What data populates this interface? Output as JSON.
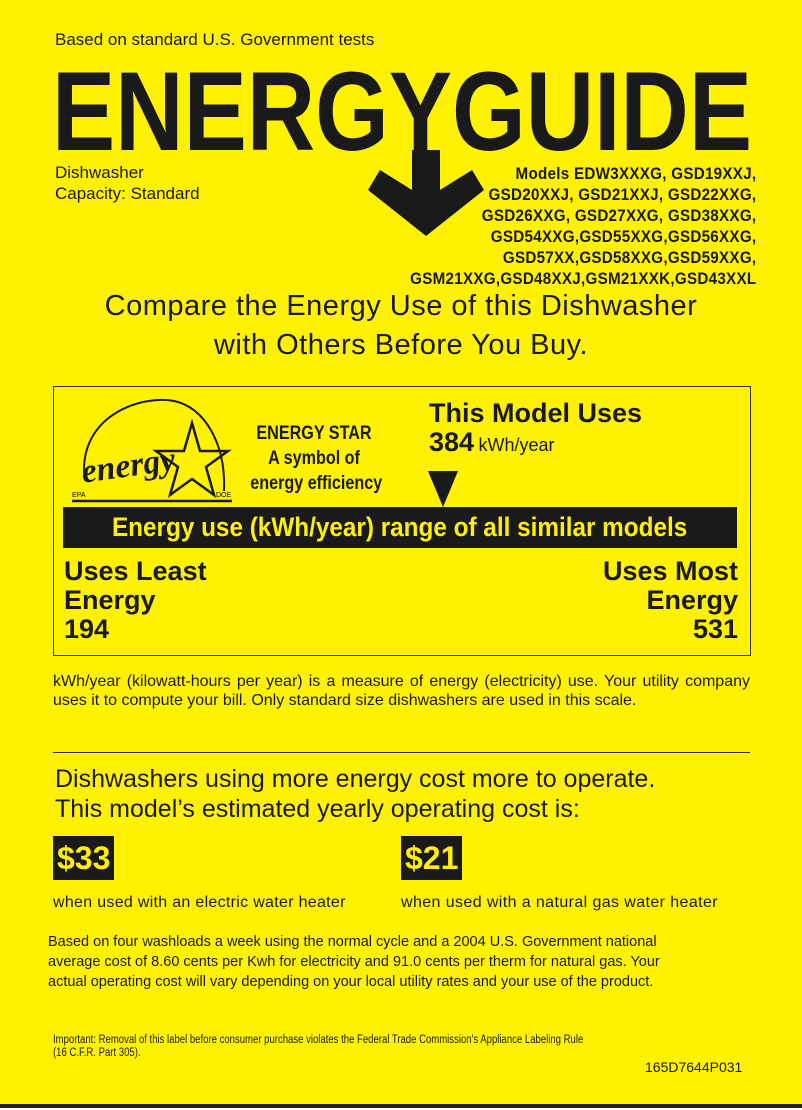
{
  "header": {
    "tests_note": "Based on standard U.S. Government tests",
    "title": "ENERGYGUIDE",
    "appliance": "Dishwasher",
    "capacity": "Capacity: Standard",
    "models": [
      "Models EDW3XXXG, GSD19XXJ,",
      "GSD20XXJ,  GSD21XXJ, GSD22XXG,",
      "GSD26XXG, GSD27XXG, GSD38XXG,",
      "GSD54XXG,GSD55XXG,GSD56XXG,",
      "GSD57XX,GSD58XXG,GSD59XXG,",
      "GSM21XXG,GSD48XXJ,GSM21XXK,GSD43XXL"
    ]
  },
  "compare": [
    "Compare the Energy Use of this Dishwasher",
    "with Others Before You Buy."
  ],
  "energy_star": {
    "logo_text": "energy",
    "logo_epa": "EPA",
    "logo_doe": "DOE",
    "lines": [
      "ENERGY STAR",
      "A symbol of",
      "energy efficiency"
    ]
  },
  "usage": {
    "heading": "This Model Uses",
    "value": "384",
    "unit": "kWh/year",
    "range_title": "Energy use (kWh/year) range of all similar models",
    "least_label": [
      "Uses Least",
      "Energy"
    ],
    "least_value": "194",
    "most_label": [
      "Uses Most",
      "Energy"
    ],
    "most_value": "531",
    "range_min": 194,
    "range_max": 531,
    "model_value": 384
  },
  "explanation": "kWh/year (kilowatt-hours per year) is a measure of energy (electricity) use. Your utility company uses it to compute your bill. Only standard size dishwashers are used in this scale.",
  "cost": {
    "heading": [
      "Dishwashers using more energy cost more to operate.",
      "This model’s estimated yearly operating cost is:"
    ],
    "electric_value": "$33",
    "electric_caption": "when used with an electric water heater",
    "gas_value": "$21",
    "gas_caption": "when used with a natural gas water heater",
    "basis": [
      "Based on four washloads a week using the normal cycle and a 2004 U.S. Government national",
      "average cost of 8.60 cents per Kwh for electricity and 91.0 cents per therm for natural gas. Your",
      "actual operating cost will vary depending on your local utility rates and your use of the product."
    ]
  },
  "footer": {
    "notice": [
      "Important: Removal of this label before consumer purchase violates the Federal Trade Commission's Appliance Labeling Rule",
      "(16 C.F.R. Part 305)."
    ],
    "part_number": "165D7644P031"
  },
  "colors": {
    "label_yellow": "#fff200",
    "ink": "#1a1a1a"
  }
}
